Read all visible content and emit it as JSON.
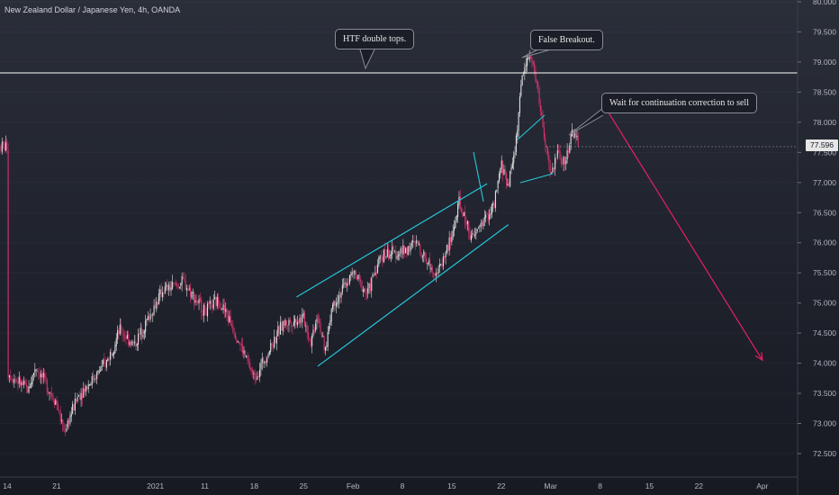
{
  "chart_data": {
    "type": "candlestick",
    "title": "New Zealand Dollar / Japanese Yen, 4h, OANDA",
    "y_axis": {
      "ticks": [
        "80.000",
        "79.500",
        "79.000",
        "78.500",
        "78.000",
        "77.500",
        "77.000",
        "76.500",
        "76.000",
        "75.500",
        "75.000",
        "74.500",
        "74.000",
        "73.500",
        "73.000",
        "72.500"
      ],
      "range": [
        72.3,
        80.0
      ]
    },
    "x_axis": {
      "ticks": [
        "14",
        "21",
        "2021",
        "11",
        "18",
        "25",
        "Feb",
        "8",
        "15",
        "22",
        "Mar",
        "8",
        "15",
        "22",
        "Apr"
      ]
    },
    "last_price": "77.596",
    "price_path": [
      {
        "x": "Dec 14",
        "y": 73.85
      },
      {
        "x": "Dec 17",
        "y": 73.55
      },
      {
        "x": "Dec 18",
        "y": 73.95
      },
      {
        "x": "Dec 21",
        "y": 73.35
      },
      {
        "x": "Dec 22",
        "y": 72.85
      },
      {
        "x": "Dec 24",
        "y": 73.45
      },
      {
        "x": "Dec 28",
        "y": 74.0
      },
      {
        "x": "Dec 30",
        "y": 74.55
      },
      {
        "x": "Jan 1",
        "y": 74.3
      },
      {
        "x": "Jan 5",
        "y": 75.2
      },
      {
        "x": "Jan 8",
        "y": 75.35
      },
      {
        "x": "Jan 11",
        "y": 74.85
      },
      {
        "x": "Jan 13",
        "y": 75.05
      },
      {
        "x": "Jan 15",
        "y": 74.6
      },
      {
        "x": "Jan 18",
        "y": 73.75
      },
      {
        "x": "Jan 20",
        "y": 74.2
      },
      {
        "x": "Jan 22",
        "y": 74.65
      },
      {
        "x": "Jan 25",
        "y": 74.75
      },
      {
        "x": "Jan 26",
        "y": 74.35
      },
      {
        "x": "Jan 27",
        "y": 74.85
      },
      {
        "x": "Jan 28",
        "y": 74.15
      },
      {
        "x": "Jan 29",
        "y": 74.95
      },
      {
        "x": "Feb 1",
        "y": 75.5
      },
      {
        "x": "Feb 3",
        "y": 75.15
      },
      {
        "x": "Feb 5",
        "y": 75.8
      },
      {
        "x": "Feb 8",
        "y": 75.85
      },
      {
        "x": "Feb 10",
        "y": 76.0
      },
      {
        "x": "Feb 12",
        "y": 75.6
      },
      {
        "x": "Feb 13",
        "y": 75.5
      },
      {
        "x": "Feb 15",
        "y": 76.1
      },
      {
        "x": "Feb 16",
        "y": 76.65
      },
      {
        "x": "Feb 18",
        "y": 76.05
      },
      {
        "x": "Feb 19",
        "y": 76.3
      },
      {
        "x": "Feb 21",
        "y": 76.6
      },
      {
        "x": "Feb 22",
        "y": 77.3
      },
      {
        "x": "Feb 23",
        "y": 76.95
      },
      {
        "x": "Feb 24",
        "y": 77.6
      },
      {
        "x": "Feb 25",
        "y": 78.8
      },
      {
        "x": "Feb 26",
        "y": 79.15
      },
      {
        "x": "Feb 27",
        "y": 78.7
      },
      {
        "x": "Feb 28",
        "y": 77.8
      },
      {
        "x": "Mar 1",
        "y": 77.1
      },
      {
        "x": "Mar 2",
        "y": 77.5
      },
      {
        "x": "Mar 3",
        "y": 77.3
      },
      {
        "x": "Mar 4",
        "y": 77.85
      },
      {
        "x": "Mar 5",
        "y": 77.6
      }
    ],
    "lines": {
      "resistance": 78.82,
      "channel_upper": [
        {
          "x": "Jan 24",
          "y": 75.1
        },
        {
          "x": "Feb 20",
          "y": 76.98
        }
      ],
      "channel_lower": [
        {
          "x": "Jan 27",
          "y": 73.95
        },
        {
          "x": "Feb 23",
          "y": 76.3
        }
      ],
      "forecast_arrow": [
        {
          "x": "Mar 9",
          "y": 78.2
        },
        {
          "x": "Mar 31",
          "y": 74.05
        }
      ]
    },
    "annotations": [
      {
        "text": "HTF double tops."
      },
      {
        "text": "False Breakout."
      },
      {
        "text": "Wait for continuation correction to sell"
      }
    ],
    "colors": {
      "up": "#e0e0e0",
      "down": "#d6336c",
      "channel": "#26c6da",
      "arrow": "#e91e63",
      "resistance": "#ffffff"
    }
  }
}
